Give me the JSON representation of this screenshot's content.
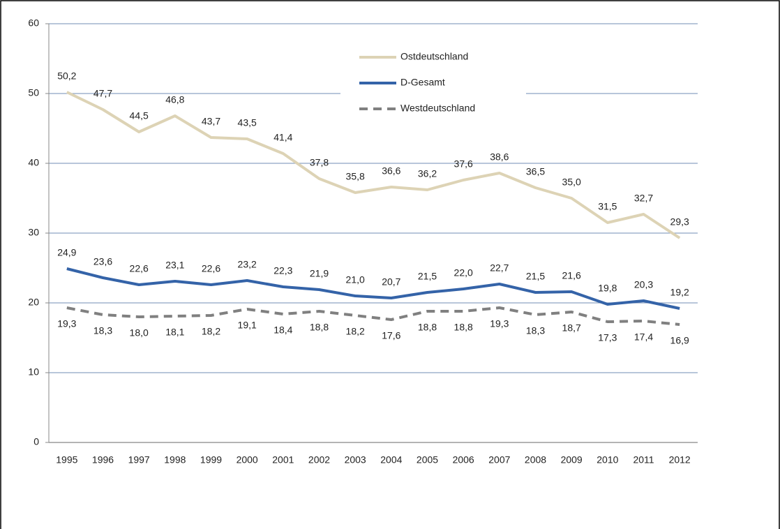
{
  "chart_data": {
    "type": "line",
    "categories": [
      "1995",
      "1996",
      "1997",
      "1998",
      "1999",
      "2000",
      "2001",
      "2002",
      "2003",
      "2004",
      "2005",
      "2006",
      "2007",
      "2008",
      "2009",
      "2010",
      "2011",
      "2012"
    ],
    "series": [
      {
        "name": "Ostdeutschland",
        "color": "#ddd3b5",
        "dashed": false,
        "values": [
          50.2,
          47.7,
          44.5,
          46.8,
          43.7,
          43.5,
          41.4,
          37.8,
          35.8,
          36.6,
          36.2,
          37.6,
          38.6,
          36.5,
          35.0,
          31.5,
          32.7,
          29.3
        ],
        "value_labels": [
          "50,2",
          "47,7",
          "44,5",
          "46,8",
          "43,7",
          "43,5",
          "41,4",
          "37,8",
          "35,8",
          "36,6",
          "36,2",
          "37,6",
          "38,6",
          "36,5",
          "35,0",
          "31,5",
          "32,7",
          "29,3"
        ]
      },
      {
        "name": "D-Gesamt",
        "color": "#3463a8",
        "dashed": false,
        "values": [
          24.9,
          23.6,
          22.6,
          23.1,
          22.6,
          23.2,
          22.3,
          21.9,
          21.0,
          20.7,
          21.5,
          22.0,
          22.7,
          21.5,
          21.6,
          19.8,
          20.3,
          19.2
        ],
        "value_labels": [
          "24,9",
          "23,6",
          "22,6",
          "23,1",
          "22,6",
          "23,2",
          "22,3",
          "21,9",
          "21,0",
          "20,7",
          "21,5",
          "22,0",
          "22,7",
          "21,5",
          "21,6",
          "19,8",
          "20,3",
          "19,2"
        ]
      },
      {
        "name": "Westdeutschland",
        "color": "#808080",
        "dashed": true,
        "values": [
          19.3,
          18.3,
          18.0,
          18.1,
          18.2,
          19.1,
          18.4,
          18.8,
          18.2,
          17.6,
          18.8,
          18.8,
          19.3,
          18.3,
          18.7,
          17.3,
          17.4,
          16.9
        ],
        "value_labels": [
          "19,3",
          "18,3",
          "18,0",
          "18,1",
          "18,2",
          "19,1",
          "18,4",
          "18,8",
          "18,2",
          "17,6",
          "18,8",
          "18,8",
          "19,3",
          "18,3",
          "18,7",
          "17,3",
          "17,4",
          "16,9"
        ]
      }
    ],
    "ylim": [
      0,
      60
    ],
    "yticks": [
      0,
      10,
      20,
      30,
      40,
      50,
      60
    ],
    "grid": true
  }
}
